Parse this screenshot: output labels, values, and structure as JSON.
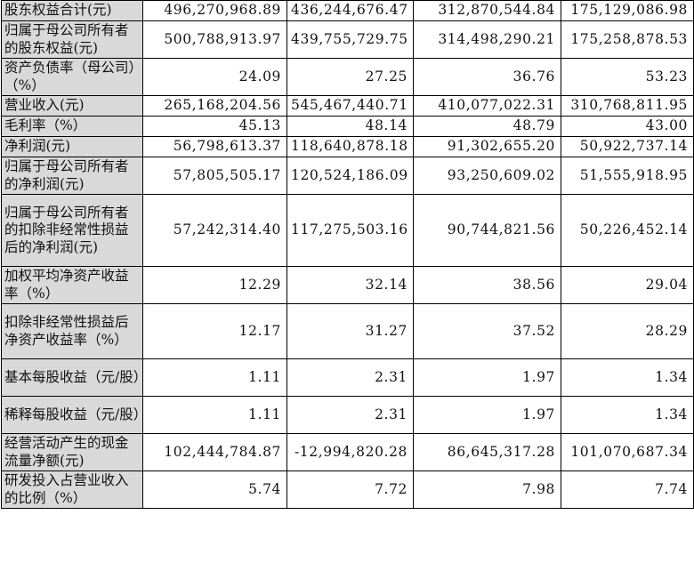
{
  "table": {
    "rows": [
      {
        "label": "股东权益合计(元)",
        "values": [
          "496,270,968.89",
          "436,244,676.47",
          "312,870,544.84",
          "175,129,086.98"
        ],
        "lines": 1
      },
      {
        "label": "归属于母公司所有者的股东权益(元)",
        "values": [
          "500,788,913.97",
          "439,755,729.75",
          "314,498,290.21",
          "175,258,878.53"
        ],
        "lines": 2
      },
      {
        "label": "资产负债率（母公司）（%）",
        "values": [
          "24.09",
          "27.25",
          "36.76",
          "53.23"
        ],
        "lines": 2
      },
      {
        "label": "营业收入(元)",
        "values": [
          "265,168,204.56",
          "545,467,440.71",
          "410,077,022.31",
          "310,768,811.95"
        ],
        "lines": 1
      },
      {
        "label": "毛利率（%）",
        "values": [
          "45.13",
          "48.14",
          "48.79",
          "43.00"
        ],
        "lines": 1
      },
      {
        "label": "净利润(元)",
        "values": [
          "56,798,613.37",
          "118,640,878.18",
          "91,302,655.20",
          "50,922,737.14"
        ],
        "lines": 1
      },
      {
        "label": "归属于母公司所有者的净利润(元)",
        "values": [
          "57,805,505.17",
          "120,524,186.09",
          "93,250,609.02",
          "51,555,918.95"
        ],
        "lines": 2
      },
      {
        "label": "归属于母公司所有者的扣除非经常性损益后的净利润(元)",
        "values": [
          "57,242,314.40",
          "117,275,503.16",
          "90,744,821.56",
          "50,226,452.14"
        ],
        "lines": 4
      },
      {
        "label": "加权平均净资产收益率（%）",
        "values": [
          "12.29",
          "32.14",
          "38.56",
          "29.04"
        ],
        "lines": 2
      },
      {
        "label": "扣除非经常性损益后净资产收益率（%）",
        "values": [
          "12.17",
          "31.27",
          "37.52",
          "28.29"
        ],
        "lines": 3
      },
      {
        "label": "基本每股收益（元/股）",
        "values": [
          "1.11",
          "2.31",
          "1.97",
          "1.34"
        ],
        "lines": 2
      },
      {
        "label": "稀释每股收益（元/股）",
        "values": [
          "1.11",
          "2.31",
          "1.97",
          "1.34"
        ],
        "lines": 2
      },
      {
        "label": "经营活动产生的现金流量净额(元)",
        "values": [
          "102,444,784.87",
          "-12,994,820.28",
          "86,645,317.28",
          "101,070,687.34"
        ],
        "lines": 2
      },
      {
        "label": "研发投入占营业收入的比例（%）",
        "values": [
          "5.74",
          "7.72",
          "7.98",
          "7.74"
        ],
        "lines": 2
      }
    ]
  }
}
